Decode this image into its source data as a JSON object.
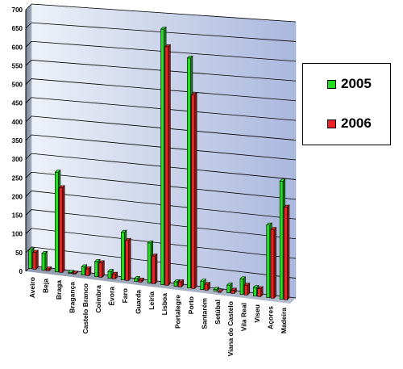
{
  "chart_data": {
    "type": "bar",
    "categories": [
      "Aveiro",
      "Beja",
      "Braga",
      "Bragança",
      "Castelo Branco",
      "Coimbra",
      "Évora",
      "Faro",
      "Guarda",
      "Leiria",
      "Lisboa",
      "Portalegre",
      "Porto",
      "Santarém",
      "Setúbal",
      "Viana do Castelo",
      "Vila Real",
      "Viseu",
      "Açores",
      "Madeira"
    ],
    "series": [
      {
        "name": "2005",
        "color": "#22dd22",
        "values": [
          50,
          45,
          265,
          3,
          22,
          40,
          18,
          125,
          8,
          105,
          665,
          12,
          595,
          22,
          5,
          20,
          40,
          22,
          185,
          300
        ]
      },
      {
        "name": "2006",
        "color": "#ee2222",
        "values": [
          45,
          5,
          225,
          2,
          18,
          38,
          12,
          105,
          5,
          72,
          620,
          13,
          500,
          15,
          0,
          8,
          25,
          20,
          175,
          235
        ]
      }
    ],
    "yticks": [
      "0",
      "50",
      "100",
      "150",
      "200",
      "250",
      "300",
      "350",
      "400",
      "450",
      "500",
      "550",
      "600",
      "650",
      "700"
    ],
    "ylim": [
      0,
      700
    ],
    "grid": true,
    "legend": "right"
  }
}
